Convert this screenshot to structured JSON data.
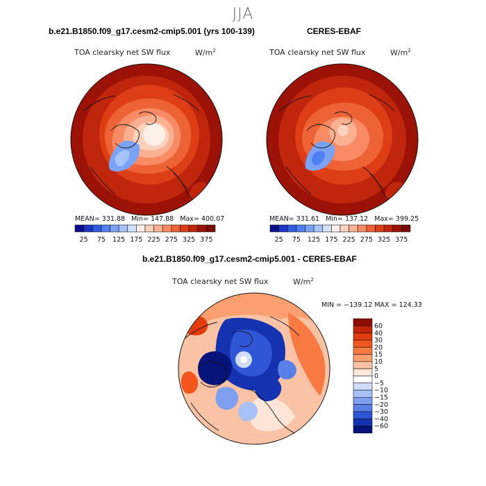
{
  "page": {
    "season": "JJA",
    "model_title": "b.e21.B1850.f09_g17.cesm2-cmip5.001 (yrs 100-139)",
    "obs_title": "CERES-EBAF",
    "diff_title": "b.e21.B1850.f09_g17.cesm2-cmip5.001 - CERES-EBAF"
  },
  "chart_data": [
    {
      "type": "heatmap",
      "projection": "north-polar-stereographic",
      "title": "TOA clearsky net SW flux",
      "units_base": "W/m",
      "units_exp": "2",
      "stats": {
        "mean_label": "MEAN=",
        "mean": "331.88",
        "min_label": "Min=",
        "min": "147.88",
        "max_label": "Max=",
        "max": "400.07"
      },
      "colorbar_ticks": [
        "25",
        "75",
        "125",
        "175",
        "225",
        "275",
        "325",
        "375"
      ],
      "colorbar_levels": [
        25,
        50,
        75,
        100,
        125,
        150,
        175,
        200,
        225,
        250,
        275,
        300,
        325,
        350,
        375
      ],
      "colors": [
        "#0b0f8a",
        "#1a36c4",
        "#2f5be0",
        "#4f7ff0",
        "#7aa3f5",
        "#a6c4f8",
        "#d3e2fb",
        "#fdf0e8",
        "#fcd2bd",
        "#fbb191",
        "#f88b64",
        "#ed6335",
        "#dd3e15",
        "#c0260c",
        "#9d1207",
        "#7a0a04"
      ]
    },
    {
      "type": "heatmap",
      "projection": "north-polar-stereographic",
      "title": "TOA clearsky net SW flux",
      "units_base": "W/m",
      "units_exp": "2",
      "stats": {
        "mean_label": "MEAN=",
        "mean": "331.61",
        "min_label": "Min=",
        "min": "137.12",
        "max_label": "Max=",
        "max": "399.25"
      },
      "colorbar_ticks": [
        "25",
        "75",
        "125",
        "175",
        "225",
        "275",
        "325",
        "375"
      ],
      "colorbar_levels": [
        25,
        50,
        75,
        100,
        125,
        150,
        175,
        200,
        225,
        250,
        275,
        300,
        325,
        350,
        375
      ],
      "colors": [
        "#0b0f8a",
        "#1a36c4",
        "#2f5be0",
        "#4f7ff0",
        "#7aa3f5",
        "#a6c4f8",
        "#d3e2fb",
        "#fdf0e8",
        "#fcd2bd",
        "#fbb191",
        "#f88b64",
        "#ed6335",
        "#dd3e15",
        "#c0260c",
        "#9d1207",
        "#7a0a04"
      ]
    },
    {
      "type": "heatmap",
      "projection": "north-polar-stereographic",
      "title": "TOA clearsky net SW flux",
      "units_base": "W/m",
      "units_exp": "2",
      "stats": {
        "min_label": "MIN =",
        "min": "−139.12",
        "max_label": "MAX =",
        "max": "124.33"
      },
      "colorbar_labels": [
        "60",
        "40",
        "30",
        "20",
        "15",
        "10",
        "5",
        "0",
        "−5",
        "−10",
        "−15",
        "−20",
        "−30",
        "−40",
        "−60"
      ],
      "colors": [
        "#8e0b02",
        "#c42408",
        "#e23b0c",
        "#f2561c",
        "#f77a42",
        "#f99f70",
        "#fac3a6",
        "#fde6d8",
        "#ffffff",
        "#cfdcfb",
        "#a7c0f6",
        "#7f9ff0",
        "#5a7fe8",
        "#2f56d6",
        "#1533b0",
        "#06137a"
      ]
    }
  ]
}
